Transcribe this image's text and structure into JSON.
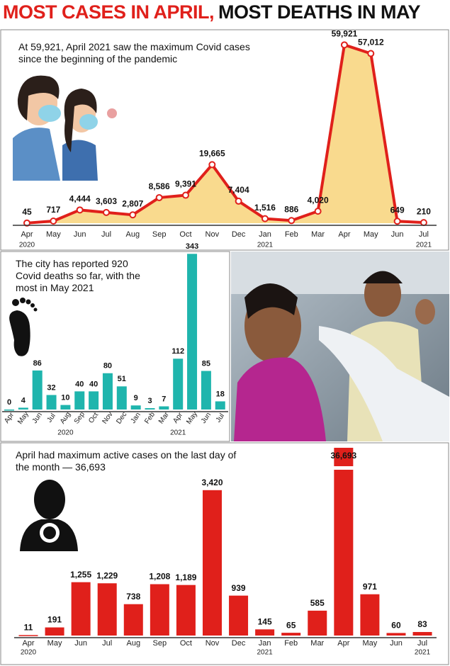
{
  "headline": [
    "MOST CASES IN APRIL,",
    "MOST DEATHS IN MAY"
  ],
  "chart_data": [
    {
      "type": "area",
      "annotation": "At 59,921, April 2021 saw the maximum Covid cases since the beginning of the pandemic",
      "categories": [
        "Apr",
        "May",
        "Jun",
        "Jul",
        "Aug",
        "Sep",
        "Oct",
        "Nov",
        "Dec",
        "Jan",
        "Feb",
        "Mar",
        "Apr",
        "May",
        "Jun",
        "Jul"
      ],
      "year_labels": [
        "2020",
        null,
        null,
        null,
        null,
        null,
        null,
        null,
        null,
        "2021",
        null,
        null,
        null,
        null,
        null,
        "2021"
      ],
      "values": [
        45,
        717,
        4444,
        3603,
        2807,
        8586,
        9391,
        19665,
        7404,
        1516,
        886,
        4020,
        59921,
        57012,
        649,
        210
      ],
      "value_labels": [
        "45",
        "717",
        "4,444",
        "3,603",
        "2,807",
        "8,586",
        "9,391",
        "19,665",
        "7,404",
        "1,516",
        "886",
        "4,020",
        "59,921",
        "57,012",
        "649",
        "210"
      ],
      "color": "#e0201b",
      "fill": "#f9da8e",
      "ylim": [
        0,
        60000
      ]
    },
    {
      "type": "bar",
      "annotation": "The city has reported 920 Covid deaths so far, with the most in May 2021",
      "categories": [
        "Apr",
        "May",
        "Jun",
        "Jul",
        "Aug",
        "Sep",
        "Oct",
        "Nov",
        "Dec",
        "Jan",
        "Feb",
        "Mar",
        "Apr",
        "May",
        "Jun",
        "Jul"
      ],
      "year_labels": [
        null,
        null,
        null,
        null,
        "2020",
        null,
        null,
        null,
        null,
        null,
        null,
        null,
        "2021",
        null,
        null,
        null
      ],
      "values": [
        0,
        4,
        86,
        32,
        10,
        40,
        40,
        80,
        51,
        9,
        3,
        7,
        112,
        343,
        85,
        18
      ],
      "color": "#1fb5ad",
      "ylim": [
        0,
        345
      ]
    },
    {
      "type": "bar",
      "annotation": "April had maximum active cases on the last day of the month — 36,693",
      "categories": [
        "Apr",
        "May",
        "Jun",
        "Jul",
        "Aug",
        "Sep",
        "Oct",
        "Nov",
        "Dec",
        "Jan",
        "Feb",
        "Mar",
        "Apr",
        "May",
        "Jun",
        "Jul"
      ],
      "year_labels": [
        "2020",
        null,
        null,
        null,
        null,
        null,
        null,
        null,
        null,
        "2021",
        null,
        null,
        null,
        null,
        null,
        "2021"
      ],
      "values": [
        11,
        191,
        1255,
        1229,
        738,
        1208,
        1189,
        3420,
        939,
        145,
        65,
        585,
        36693,
        971,
        60,
        83
      ],
      "value_labels": [
        "11",
        "191",
        "1,255",
        "1,229",
        "738",
        "1,208",
        "1,189",
        "3,420",
        "939",
        "145",
        "65",
        "585",
        "36,693",
        "971",
        "60",
        "83"
      ],
      "color": "#e0201b",
      "ylim": [
        0,
        3500
      ]
    }
  ]
}
